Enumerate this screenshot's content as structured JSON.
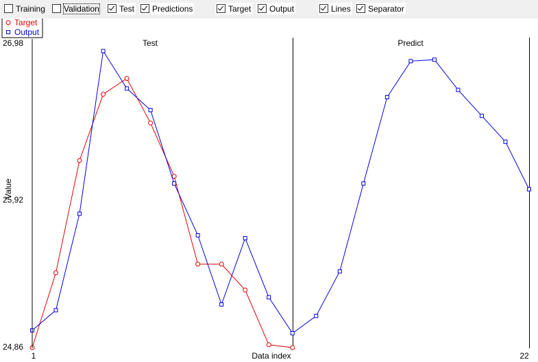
{
  "toolbar": {
    "checkboxes": [
      {
        "label": "Training",
        "checked": false
      },
      {
        "label": "Validation",
        "checked": false
      },
      {
        "label": "Test",
        "checked": true
      },
      {
        "label": "Predictions",
        "checked": true
      },
      {
        "label": "Target",
        "checked": true
      },
      {
        "label": "Output",
        "checked": true
      },
      {
        "label": "Lines",
        "checked": true
      },
      {
        "label": "Separator",
        "checked": true
      }
    ]
  },
  "chart_data": {
    "type": "line",
    "title": "",
    "xlabel": "Data index",
    "ylabel": "Value",
    "x_ticks": [
      "1",
      "22"
    ],
    "y_ticks": [
      "24,86",
      "25,92",
      "26,98"
    ],
    "xlim": [
      1,
      22
    ],
    "ylim": [
      24.86,
      26.98
    ],
    "grid": false,
    "legend_position": "top-left",
    "sections": [
      {
        "label": "Test",
        "x_start": 1,
        "x_end": 12
      },
      {
        "label": "Predict",
        "x_start": 12,
        "x_end": 22
      }
    ],
    "series": [
      {
        "name": "Target",
        "color": "#e00000",
        "marker": "circle",
        "x": [
          1,
          2,
          3,
          4,
          5,
          6,
          7,
          8,
          9,
          10,
          11,
          12
        ],
        "values": [
          24.86,
          25.38,
          26.16,
          26.62,
          26.73,
          26.42,
          26.05,
          25.44,
          25.44,
          25.26,
          24.88,
          24.86
        ]
      },
      {
        "name": "Output",
        "color": "#0000e0",
        "marker": "square",
        "x": [
          1,
          2,
          3,
          4,
          5,
          6,
          7,
          8,
          9,
          10,
          11,
          12,
          13,
          14,
          15,
          16,
          17,
          18,
          19,
          20,
          21,
          22
        ],
        "values": [
          24.98,
          25.12,
          25.79,
          26.92,
          26.66,
          26.51,
          26.0,
          25.64,
          25.16,
          25.62,
          25.21,
          24.96,
          25.08,
          25.39,
          26.0,
          26.6,
          26.85,
          26.86,
          26.65,
          26.47,
          26.29,
          25.96
        ]
      }
    ]
  }
}
